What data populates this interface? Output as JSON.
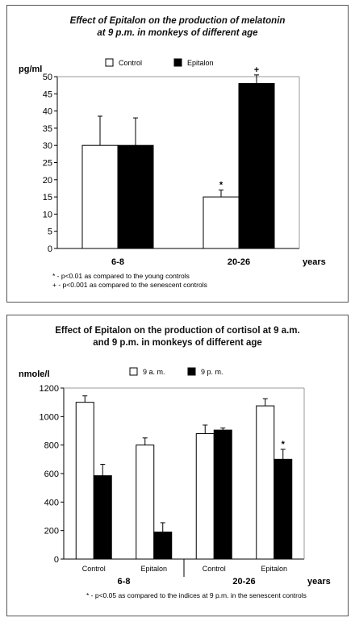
{
  "chart_data": [
    {
      "type": "bar",
      "title": "Effect of Epitalon on the production of melatonin",
      "subtitle": "at 9 p.m. in monkeys of different age",
      "ylabel": "pg/ml",
      "xlabel": "years",
      "ylim": [
        0,
        50
      ],
      "yticks": [
        0,
        5,
        10,
        15,
        20,
        25,
        30,
        35,
        40,
        45,
        50
      ],
      "categories": [
        "6-8",
        "20-26"
      ],
      "series": [
        {
          "name": "Control",
          "values": [
            30,
            15
          ],
          "errors": [
            8.5,
            2
          ],
          "color": "#ffffff",
          "marks": [
            "",
            "*"
          ]
        },
        {
          "name": "Epitalon",
          "values": [
            30,
            48
          ],
          "errors": [
            8,
            2.5
          ],
          "color": "#000000",
          "marks": [
            "",
            "+"
          ]
        }
      ],
      "legend_position": "top",
      "footnotes": [
        "* - p<0.01 as compared to the young controls",
        "+ - p<0.001 as compared to the senescent controls"
      ]
    },
    {
      "type": "bar",
      "title": "Effect of Epitalon on the production of cortisol at 9 a.m.",
      "subtitle": "and 9 p.m. in monkeys of different age",
      "ylabel": "nmole/l",
      "xlabel": "years",
      "ylim": [
        0,
        1200
      ],
      "yticks": [
        0,
        200,
        400,
        600,
        800,
        1000,
        1200
      ],
      "categories": [
        "Control",
        "Epitalon",
        "Control",
        "Epitalon"
      ],
      "groups": [
        "6-8",
        "20-26"
      ],
      "series": [
        {
          "name": "9 a. m.",
          "values": [
            1100,
            800,
            880,
            1075
          ],
          "errors": [
            45,
            50,
            60,
            50
          ],
          "color": "#ffffff",
          "marks": [
            "",
            "",
            "",
            ""
          ]
        },
        {
          "name": "9 p. m.",
          "values": [
            585,
            190,
            905,
            700
          ],
          "errors": [
            80,
            65,
            15,
            70
          ],
          "color": "#000000",
          "marks": [
            "",
            "",
            "",
            "*"
          ]
        }
      ],
      "legend_position": "top",
      "footnotes": [
        "* - p<0.05 as compared to the indices at 9 p.m. in the senescent controls"
      ]
    }
  ]
}
